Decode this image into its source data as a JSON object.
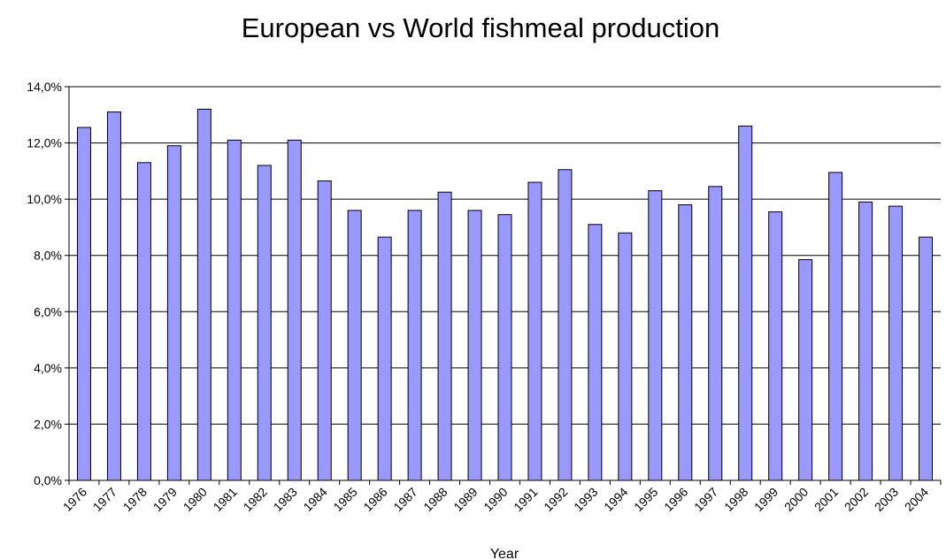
{
  "chart_data": {
    "type": "bar",
    "title": "European vs World fishmeal production",
    "x_label": "Year",
    "categories": [
      "1976",
      "1977",
      "1978",
      "1979",
      "1980",
      "1981",
      "1982",
      "1983",
      "1984",
      "1985",
      "1986",
      "1987",
      "1988",
      "1989",
      "1990",
      "1991",
      "1992",
      "1993",
      "1994",
      "1995",
      "1996",
      "1997",
      "1998",
      "1999",
      "2000",
      "2001",
      "2002",
      "2003",
      "2004"
    ],
    "values": [
      12.55,
      13.1,
      11.3,
      11.9,
      13.2,
      12.1,
      11.2,
      12.1,
      10.65,
      9.6,
      8.65,
      9.6,
      10.25,
      9.6,
      9.45,
      10.6,
      11.05,
      9.1,
      8.8,
      10.3,
      9.8,
      10.45,
      12.6,
      9.55,
      7.85,
      10.95,
      9.9,
      9.75,
      8.65
    ],
    "color": "#9999ff",
    "ylim": [
      0,
      14
    ],
    "yticks": [
      {
        "value": 0,
        "label": "0,0%"
      },
      {
        "value": 2,
        "label": "2,0%"
      },
      {
        "value": 4,
        "label": "4,0%"
      },
      {
        "value": 6,
        "label": "6,0%"
      },
      {
        "value": 8,
        "label": "8,0%"
      },
      {
        "value": 10,
        "label": "10,0%"
      },
      {
        "value": 12,
        "label": "12,0%"
      },
      {
        "value": 14,
        "label": "14,0%"
      }
    ],
    "grid": true
  }
}
